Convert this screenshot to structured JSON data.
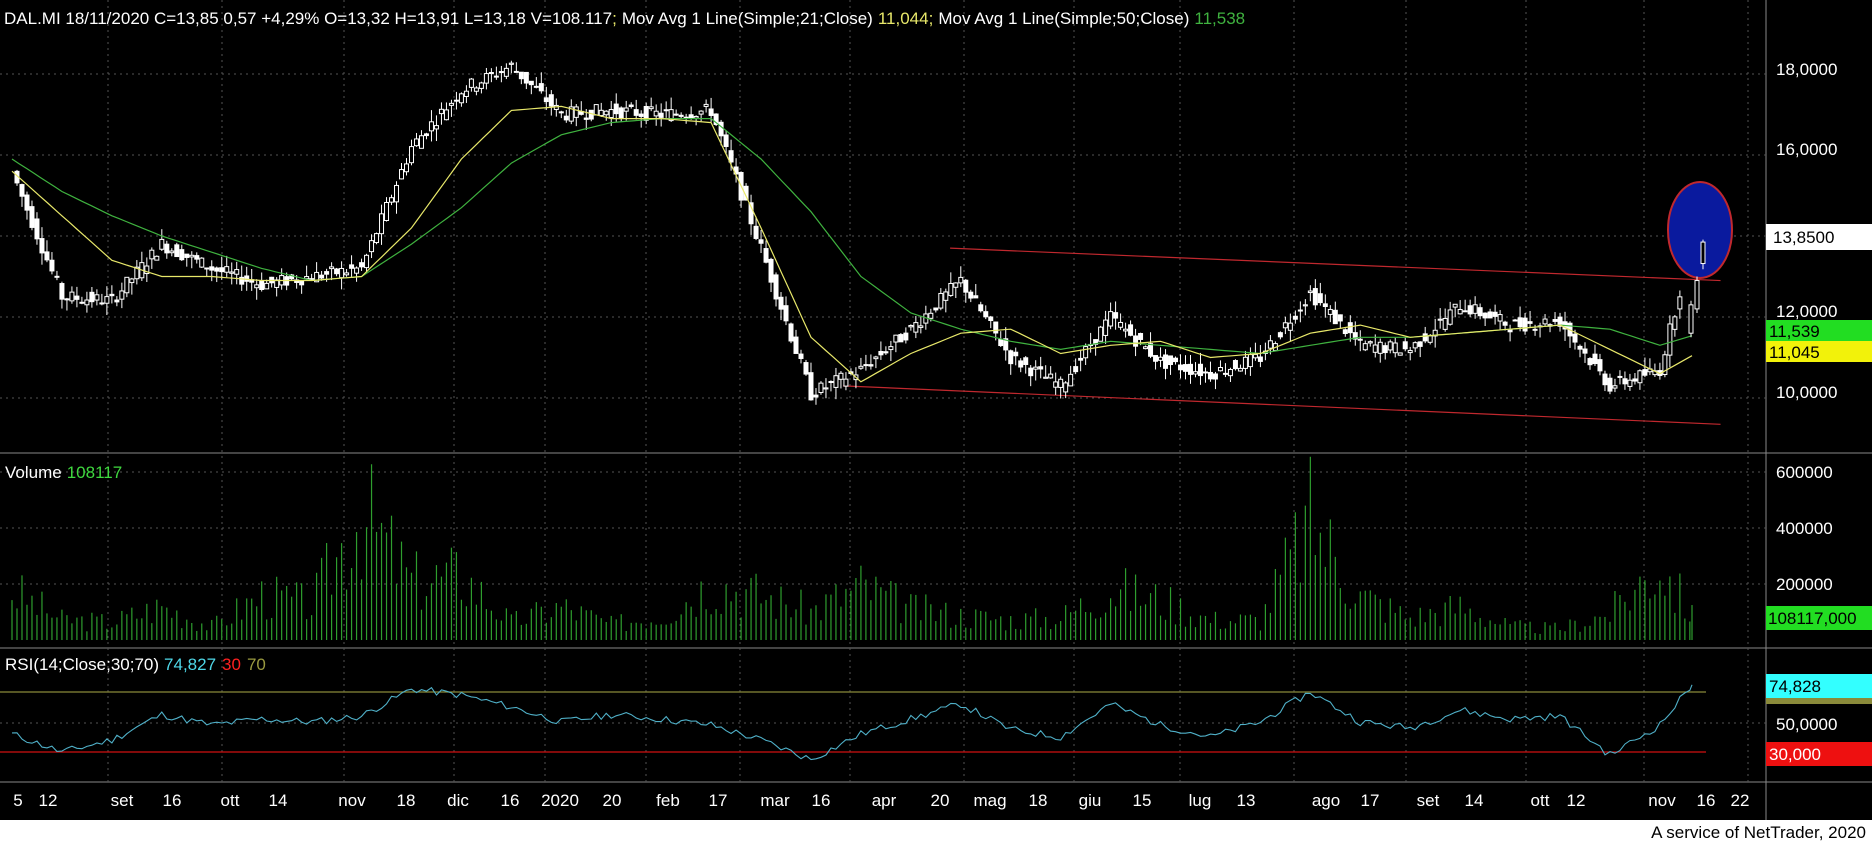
{
  "header": {
    "ticker": "DAL.MI 18/11/2020 C=13,85 0,57 +4,29% O=13,32 H=13,91 L=13,18 V=108.117",
    "sep": ";",
    "ma21_label": "Mov Avg 1 Line(Simple;21;Close)",
    "ma21_value": "11,044",
    "ma50_label": "Mov Avg 1 Line(Simple;50;Close)",
    "ma50_value": "11,538"
  },
  "price_axis": {
    "ticks": [
      "18,0000",
      "16,0000",
      "12,0000",
      "10,0000"
    ],
    "last_price": "13,8500",
    "ma50_tag": "11,539",
    "ma21_tag": "11,045"
  },
  "volume_panel": {
    "label": "Volume",
    "value": "108117",
    "ticks": [
      "600000",
      "400000",
      "200000"
    ],
    "last_tag": "108117,000"
  },
  "rsi_panel": {
    "label": "RSI(14;Close;30;70)",
    "value": "74,827",
    "low": "30",
    "high": "70",
    "ticks": [
      "50,0000"
    ],
    "value_tag": "74,828",
    "low_tag": "30,000"
  },
  "time_axis": {
    "labels": [
      "5",
      "12",
      "set",
      "16",
      "ott",
      "14",
      "nov",
      "18",
      "dic",
      "16",
      "2020",
      "20",
      "feb",
      "17",
      "mar",
      "16",
      "apr",
      "20",
      "mag",
      "18",
      "giu",
      "15",
      "lug",
      "13",
      "ago",
      "17",
      "set",
      "14",
      "ott",
      "12",
      "nov",
      "16",
      "22"
    ]
  },
  "footer": {
    "credit": "A service of NetTrader, 2020"
  },
  "colors": {
    "background": "#000000",
    "up_candle": "#ffffff",
    "down_candle": "#ffffff",
    "ma21": "#e8e86a",
    "ma50": "#3fb23f",
    "trendline": "#c0282e",
    "highlight_ellipse": "#0a1a9e",
    "volume_bar": "#2e9e2e",
    "rsi_line": "#4fb0c8",
    "rsi_high": "#8a8a3a",
    "rsi_low": "#d01010",
    "grid": "#555555"
  },
  "chart_data": [
    {
      "type": "candlestick",
      "title": "DAL.MI 18/11/2020 C=13,85 0,57 +4,29% O=13,32 H=13,91 L=13,18 V=108.117",
      "xlabel": "",
      "ylabel": "",
      "ylim": [
        9.0,
        19.5
      ],
      "grid": true,
      "series": [
        {
          "name": "Mov Avg 1 Line(Simple;21;Close)",
          "last": 11.044
        },
        {
          "name": "Mov Avg 1 Line(Simple;50;Close)",
          "last": 11.538
        }
      ],
      "last_close": 13.85,
      "x": [
        "2019-08-05",
        "2019-08-19",
        "2019-09-02",
        "2019-09-16",
        "2019-09-30",
        "2019-10-14",
        "2019-10-28",
        "2019-11-11",
        "2019-11-25",
        "2019-12-09",
        "2019-12-23",
        "2020-01-06",
        "2020-01-20",
        "2020-02-03",
        "2020-02-17",
        "2020-03-02",
        "2020-03-16",
        "2020-03-30",
        "2020-04-13",
        "2020-04-27",
        "2020-05-11",
        "2020-05-25",
        "2020-06-08",
        "2020-06-22",
        "2020-07-06",
        "2020-07-20",
        "2020-08-03",
        "2020-08-17",
        "2020-08-31",
        "2020-09-14",
        "2020-09-28",
        "2020-10-12",
        "2020-10-26",
        "2020-11-09",
        "2020-11-18"
      ],
      "close": [
        15.6,
        12.5,
        12.4,
        13.8,
        13.2,
        12.8,
        13.0,
        13.2,
        16.2,
        17.6,
        18.2,
        17.0,
        17.1,
        17.0,
        17.1,
        13.7,
        10.1,
        10.7,
        11.7,
        12.9,
        11.0,
        10.3,
        12.0,
        10.9,
        10.6,
        11.0,
        12.6,
        11.3,
        11.2,
        12.3,
        11.8,
        11.9,
        10.3,
        10.7,
        13.85
      ],
      "ma21": [
        15.6,
        14.5,
        13.4,
        13.0,
        13.0,
        12.9,
        12.9,
        13.0,
        14.2,
        15.9,
        17.1,
        17.2,
        16.9,
        16.9,
        16.8,
        14.2,
        11.5,
        10.4,
        11.1,
        11.6,
        11.7,
        11.1,
        11.3,
        11.4,
        11.0,
        11.1,
        11.6,
        11.8,
        11.5,
        11.6,
        11.7,
        11.8,
        11.2,
        10.6,
        11.044
      ],
      "ma50": [
        15.9,
        15.1,
        14.5,
        14.0,
        13.6,
        13.2,
        12.9,
        13.0,
        13.8,
        14.7,
        15.8,
        16.5,
        16.8,
        16.9,
        16.9,
        15.9,
        14.6,
        13.0,
        12.1,
        11.7,
        11.4,
        11.2,
        11.4,
        11.3,
        11.2,
        11.1,
        11.3,
        11.5,
        11.5,
        11.6,
        11.7,
        11.8,
        11.7,
        11.3,
        11.538
      ],
      "trendlines": [
        {
          "name": "upper",
          "from": [
            "2020-04-24",
            13.7
          ],
          "to": [
            "2020-11-26",
            12.9
          ]
        },
        {
          "name": "lower",
          "from": [
            "2020-03-25",
            10.3
          ],
          "to": [
            "2020-11-26",
            9.35
          ]
        }
      ]
    },
    {
      "type": "bar",
      "title": "Volume",
      "ylim": [
        0,
        650000
      ],
      "x": [
        "2019-08-05",
        "2019-08-19",
        "2019-09-02",
        "2019-09-16",
        "2019-09-30",
        "2019-10-14",
        "2019-10-28",
        "2019-11-11",
        "2019-11-25",
        "2019-12-09",
        "2019-12-23",
        "2020-01-06",
        "2020-01-20",
        "2020-02-03",
        "2020-02-17",
        "2020-03-02",
        "2020-03-16",
        "2020-03-30",
        "2020-04-13",
        "2020-04-27",
        "2020-05-11",
        "2020-05-25",
        "2020-06-08",
        "2020-06-22",
        "2020-07-06",
        "2020-07-20",
        "2020-08-03",
        "2020-08-17",
        "2020-08-31",
        "2020-09-14",
        "2020-09-28",
        "2020-10-12",
        "2020-10-26",
        "2020-11-09",
        "2020-11-18"
      ],
      "values": [
        220000,
        90000,
        80000,
        150000,
        60000,
        200000,
        160000,
        580000,
        260000,
        290000,
        80000,
        150000,
        70000,
        110000,
        260000,
        200000,
        130000,
        240000,
        140000,
        110000,
        90000,
        100000,
        230000,
        180000,
        90000,
        90000,
        540000,
        200000,
        100000,
        150000,
        60000,
        50000,
        120000,
        340000,
        108117
      ]
    },
    {
      "type": "line",
      "title": "RSI(14;Close;30;70)",
      "ylim": [
        0,
        100
      ],
      "levels": {
        "high": 70,
        "low": 30
      },
      "x": [
        "2019-08-05",
        "2019-08-19",
        "2019-09-02",
        "2019-09-16",
        "2019-09-30",
        "2019-10-14",
        "2019-10-28",
        "2019-11-11",
        "2019-11-25",
        "2019-12-09",
        "2019-12-23",
        "2020-01-06",
        "2020-01-20",
        "2020-02-03",
        "2020-02-17",
        "2020-03-02",
        "2020-03-16",
        "2020-03-30",
        "2020-04-13",
        "2020-04-27",
        "2020-05-11",
        "2020-05-25",
        "2020-06-08",
        "2020-06-22",
        "2020-07-06",
        "2020-07-20",
        "2020-08-03",
        "2020-08-17",
        "2020-08-31",
        "2020-09-14",
        "2020-09-28",
        "2020-10-12",
        "2020-10-26",
        "2020-11-09",
        "2020-11-18"
      ],
      "values": [
        42,
        30,
        38,
        55,
        48,
        52,
        50,
        54,
        72,
        68,
        60,
        50,
        55,
        52,
        48,
        38,
        25,
        42,
        52,
        62,
        45,
        40,
        62,
        48,
        40,
        50,
        70,
        50,
        46,
        58,
        52,
        54,
        28,
        48,
        74.827
      ]
    }
  ]
}
